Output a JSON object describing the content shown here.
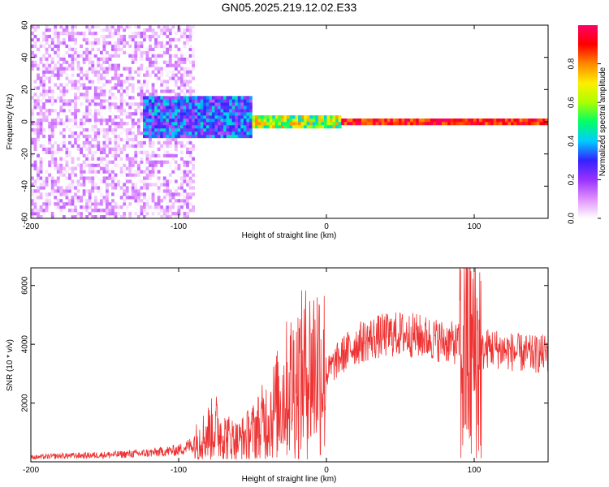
{
  "title": "GN05.2025.219.12.02.E33",
  "chart_data": [
    {
      "type": "heatmap",
      "xlabel": "Height of straight line (km)",
      "ylabel": "Frequency (Hz)",
      "xlim": [
        -200,
        150
      ],
      "ylim": [
        -60,
        60
      ],
      "x_ticks": [
        "-200",
        "-100",
        "0",
        "100"
      ],
      "y_ticks": [
        "60",
        "40",
        "20",
        "0",
        "-20",
        "-40",
        "-60"
      ],
      "colorbar": {
        "label": "Normalized spectral amplitude",
        "range": [
          0,
          1
        ],
        "ticks": [
          "0.0",
          "0.2",
          "0.4",
          "0.6",
          "0.8"
        ],
        "colors": [
          "#ffffff",
          "#e090ff",
          "#9933ff",
          "#3322ff",
          "#00ccff",
          "#00ff66",
          "#aaff00",
          "#ffee00",
          "#ff8800",
          "#ff0000",
          "#ff0066"
        ]
      },
      "regions": [
        {
          "x_range": [
            -200,
            -90
          ],
          "freq_range": [
            -60,
            60
          ],
          "amplitude_range": [
            0.0,
            0.15
          ]
        },
        {
          "x_range": [
            -125,
            -50
          ],
          "freq_range": [
            -10,
            15
          ],
          "amplitude_range": [
            0.15,
            0.45
          ]
        },
        {
          "x_range": [
            -50,
            10
          ],
          "freq_range": [
            -3,
            3
          ],
          "amplitude_range": [
            0.4,
            0.8
          ]
        },
        {
          "x_range": [
            10,
            150
          ],
          "freq_range": [
            -1,
            1
          ],
          "amplitude_range": [
            0.8,
            1.0
          ]
        }
      ]
    },
    {
      "type": "line",
      "xlabel": "Height of straight line (km)",
      "ylabel": "SNR (10 * v/v)",
      "xlim": [
        -200,
        150
      ],
      "ylim": [
        0,
        6600
      ],
      "x_ticks": [
        "-200",
        "-100",
        "0",
        "100"
      ],
      "y_ticks": [
        "2000",
        "4000",
        "6000"
      ],
      "line_color": "#ee3333",
      "series": [
        {
          "x": [
            -200,
            -180,
            -160,
            -140,
            -120,
            -110,
            -100,
            -90,
            -80,
            -75,
            -70,
            -60,
            -50,
            -40,
            -35,
            -30,
            -25,
            -20,
            -15,
            -10,
            -5,
            0,
            10,
            20,
            30,
            40,
            50,
            60,
            70,
            80,
            90,
            95,
            98,
            100,
            102,
            105,
            110,
            120,
            130,
            140,
            150
          ],
          "y": [
            150,
            200,
            220,
            250,
            300,
            350,
            400,
            600,
            1000,
            1200,
            900,
            700,
            1000,
            1500,
            1800,
            2200,
            2600,
            2800,
            3000,
            3200,
            3400,
            3000,
            3600,
            4000,
            4200,
            4300,
            4350,
            4300,
            4200,
            4100,
            4000,
            3800,
            3500,
            3900,
            3800,
            3700,
            3900,
            3800,
            3700,
            3650,
            3700
          ]
        }
      ]
    }
  ]
}
